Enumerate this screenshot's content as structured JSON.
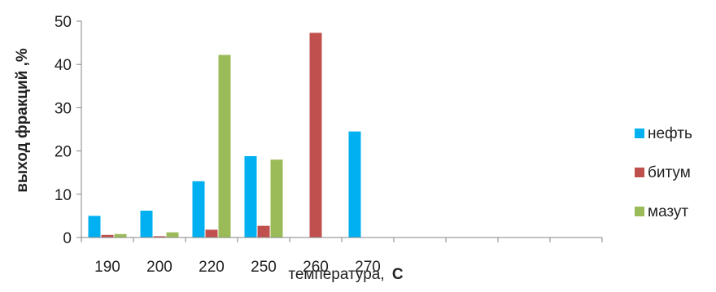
{
  "chart_data": {
    "type": "bar",
    "categories": [
      "190",
      "200",
      "220",
      "250",
      "260",
      "270",
      "",
      "",
      "",
      ""
    ],
    "series": [
      {
        "name": "нефть",
        "color": "#00B0F0",
        "values": [
          5,
          6.2,
          13,
          18.8,
          null,
          24.5,
          null,
          null,
          null,
          null
        ]
      },
      {
        "name": "битум",
        "color": "#C0504D",
        "values": [
          0.6,
          0.3,
          1.8,
          2.7,
          47.3,
          null,
          null,
          null,
          null,
          null
        ]
      },
      {
        "name": "мазут",
        "color": "#9BBB59",
        "values": [
          0.8,
          1.2,
          42.2,
          18,
          null,
          null,
          null,
          null,
          null,
          null
        ]
      }
    ],
    "title": "",
    "xlabel": "температура,",
    "xlabel_unit": "С",
    "ylabel": "выход фракций ,%",
    "ylim": [
      0,
      50
    ],
    "yticks": [
      0,
      10,
      20,
      30,
      40,
      50
    ],
    "grid": false,
    "legend_position": "right"
  }
}
